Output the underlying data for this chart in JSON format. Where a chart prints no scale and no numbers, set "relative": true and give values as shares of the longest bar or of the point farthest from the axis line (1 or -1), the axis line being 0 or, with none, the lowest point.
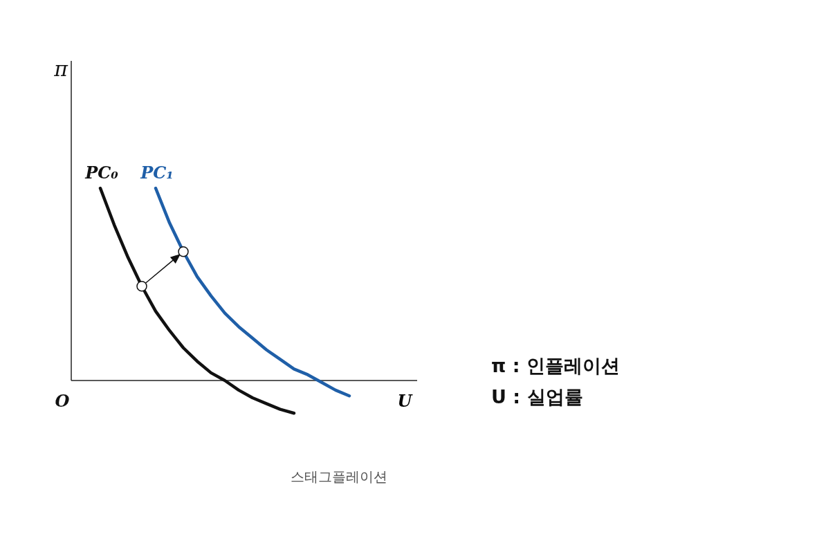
{
  "chart_data": {
    "type": "line",
    "relative": true,
    "xlabel": "U",
    "categories": [
      null,
      null,
      null,
      null,
      null,
      null,
      null,
      null,
      null,
      null,
      null,
      null,
      null,
      null,
      null,
      null,
      null,
      null,
      null
    ],
    "series": [
      {
        "name": "PC₀",
        "color": "#111111",
        "values": [
          1.0,
          0.81,
          0.64,
          0.49,
          0.36,
          0.26,
          0.17,
          0.1,
          0.04,
          0.0,
          -0.05,
          -0.09,
          -0.12,
          -0.15,
          -0.17,
          null,
          null,
          null,
          null
        ]
      },
      {
        "name": "PC₁",
        "color": "#1f5fa8",
        "values": [
          null,
          null,
          null,
          null,
          1.0,
          0.82,
          0.67,
          0.54,
          0.44,
          0.35,
          0.28,
          0.22,
          0.16,
          0.11,
          0.06,
          0.03,
          -0.01,
          -0.05,
          -0.08
        ]
      }
    ],
    "annotations": [
      "π",
      "O",
      "π : 인플레이션",
      "U : 실업률",
      "스태그플레이션"
    ]
  }
}
